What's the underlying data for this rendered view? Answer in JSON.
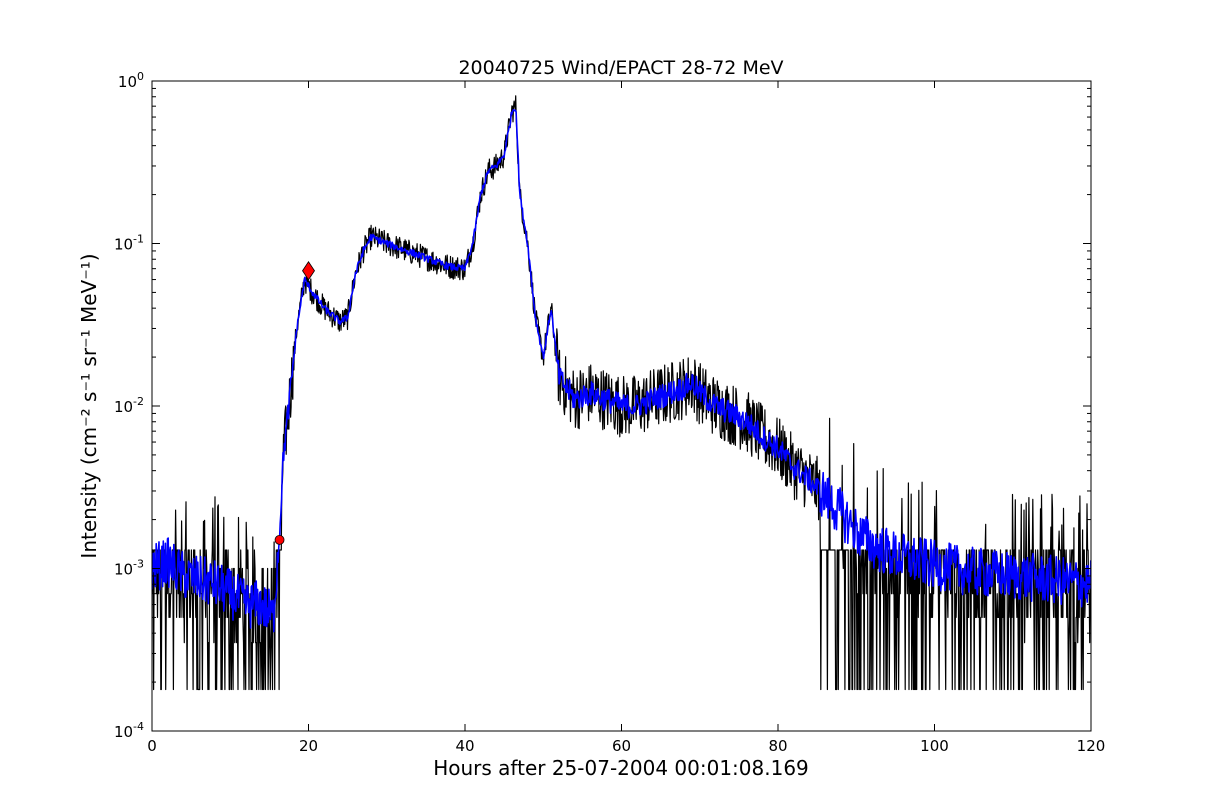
{
  "chart_data": {
    "type": "line",
    "title": "20040725 Wind/EPACT 28-72 MeV",
    "xlabel": "Hours after 25-07-2004 00:01:08.169",
    "ylabel": "Intensity (cm⁻² s⁻¹ sr⁻¹ MeV⁻¹)",
    "xlim": [
      0,
      120
    ],
    "ylim": [
      0.0001,
      1
    ],
    "yscale": "log",
    "grid": false,
    "x_ticks": [
      0,
      20,
      40,
      60,
      80,
      100,
      120
    ],
    "x_tick_labels": [
      "0",
      "20",
      "40",
      "60",
      "80",
      "100",
      "120"
    ],
    "y_ticks": [
      0.0001,
      0.001,
      0.01,
      0.1,
      1
    ],
    "y_tick_labels": [
      {
        "base": "10",
        "exp": "-4"
      },
      {
        "base": "10",
        "exp": "-3"
      },
      {
        "base": "10",
        "exp": "-2"
      },
      {
        "base": "10",
        "exp": "-1"
      },
      {
        "base": "10",
        "exp": "0"
      }
    ],
    "series": [
      {
        "color": "#000000",
        "style": "noisy-raw",
        "x": [
          0,
          2,
          4,
          6,
          8,
          10,
          12,
          14,
          15.5,
          16.2,
          16.8,
          17.5,
          18.5,
          19.5,
          20.5,
          22,
          24,
          25,
          26,
          27,
          28,
          30,
          32,
          34,
          36,
          38,
          40,
          41,
          42,
          43,
          44,
          45,
          46,
          46.5,
          47,
          48,
          49,
          50,
          51,
          52,
          54,
          56,
          58,
          60,
          62,
          64,
          66,
          68,
          69,
          70,
          72,
          74,
          76,
          78,
          80,
          82,
          84,
          86,
          88,
          90,
          92,
          95,
          100,
          105,
          110,
          115,
          120
        ],
        "y": [
          0.001,
          0.0011,
          0.0009,
          0.00085,
          0.0008,
          0.0007,
          0.0006,
          0.0006,
          0.0005,
          0.0015,
          0.005,
          0.01,
          0.03,
          0.06,
          0.05,
          0.04,
          0.033,
          0.035,
          0.065,
          0.09,
          0.11,
          0.1,
          0.092,
          0.085,
          0.078,
          0.072,
          0.07,
          0.1,
          0.2,
          0.28,
          0.3,
          0.35,
          0.65,
          0.7,
          0.2,
          0.1,
          0.035,
          0.02,
          0.04,
          0.015,
          0.011,
          0.012,
          0.011,
          0.01,
          0.01,
          0.011,
          0.012,
          0.013,
          0.014,
          0.012,
          0.01,
          0.009,
          0.008,
          0.0065,
          0.0055,
          0.0042,
          0.0035,
          0.0028,
          0.0022,
          0.0017,
          0.0014,
          0.0012,
          0.00105,
          0.00095,
          0.0009,
          0.00085,
          0.0008
        ]
      },
      {
        "color": "#0000ff",
        "style": "smoothed",
        "x": [
          0,
          2,
          4,
          6,
          8,
          10,
          12,
          14,
          15.5,
          16.2,
          16.8,
          17.5,
          18.5,
          19.5,
          20.5,
          22,
          24,
          25,
          26,
          27,
          28,
          30,
          32,
          34,
          36,
          38,
          40,
          41,
          42,
          43,
          44,
          45,
          46,
          46.5,
          47,
          48,
          49,
          50,
          51,
          52,
          54,
          56,
          58,
          60,
          62,
          64,
          66,
          68,
          69,
          70,
          72,
          74,
          76,
          78,
          80,
          82,
          84,
          86,
          88,
          90,
          92,
          95,
          100,
          105,
          110,
          115,
          120
        ],
        "y": [
          0.001,
          0.0011,
          0.0009,
          0.00085,
          0.0008,
          0.0007,
          0.0006,
          0.0006,
          0.0005,
          0.0015,
          0.005,
          0.01,
          0.03,
          0.06,
          0.05,
          0.04,
          0.033,
          0.035,
          0.065,
          0.09,
          0.11,
          0.1,
          0.092,
          0.085,
          0.078,
          0.072,
          0.07,
          0.1,
          0.2,
          0.28,
          0.3,
          0.35,
          0.65,
          0.7,
          0.2,
          0.1,
          0.035,
          0.02,
          0.04,
          0.015,
          0.011,
          0.012,
          0.011,
          0.01,
          0.01,
          0.011,
          0.012,
          0.013,
          0.014,
          0.012,
          0.01,
          0.009,
          0.008,
          0.0065,
          0.0055,
          0.0042,
          0.0035,
          0.0028,
          0.0022,
          0.0017,
          0.0014,
          0.0012,
          0.00105,
          0.00095,
          0.0009,
          0.00085,
          0.0008
        ]
      }
    ],
    "markers": [
      {
        "shape": "circle",
        "x": 16.3,
        "y": 0.0015,
        "color": "#ff0000"
      },
      {
        "shape": "diamond",
        "x": 20.0,
        "y": 0.068,
        "color": "#ff0000"
      }
    ]
  }
}
